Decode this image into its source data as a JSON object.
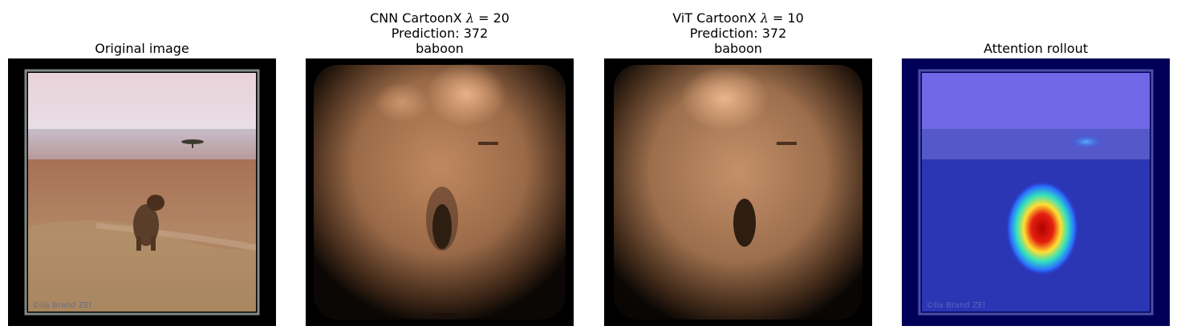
{
  "panels": [
    {
      "id": "original",
      "title_lines": [
        "Original image"
      ]
    },
    {
      "id": "cnn",
      "title_line1_prefix": "CNN CartoonX ",
      "lambda_symbol": "λ",
      "lambda_eq": " = 20",
      "title_lines": [
        "Prediction: 372",
        "baboon"
      ]
    },
    {
      "id": "vit",
      "title_line1_prefix": "ViT CartoonX ",
      "lambda_symbol": "λ",
      "lambda_eq": " = 10",
      "title_lines": [
        "Prediction: 372",
        "baboon"
      ]
    },
    {
      "id": "rollout",
      "title_lines": [
        "Attention rollout"
      ]
    }
  ],
  "watermark": "©lla Brand ZEI",
  "colors": {
    "sky": "#eadbe0",
    "savanna": "#a9785a",
    "overlay": "#1a1a8c"
  }
}
